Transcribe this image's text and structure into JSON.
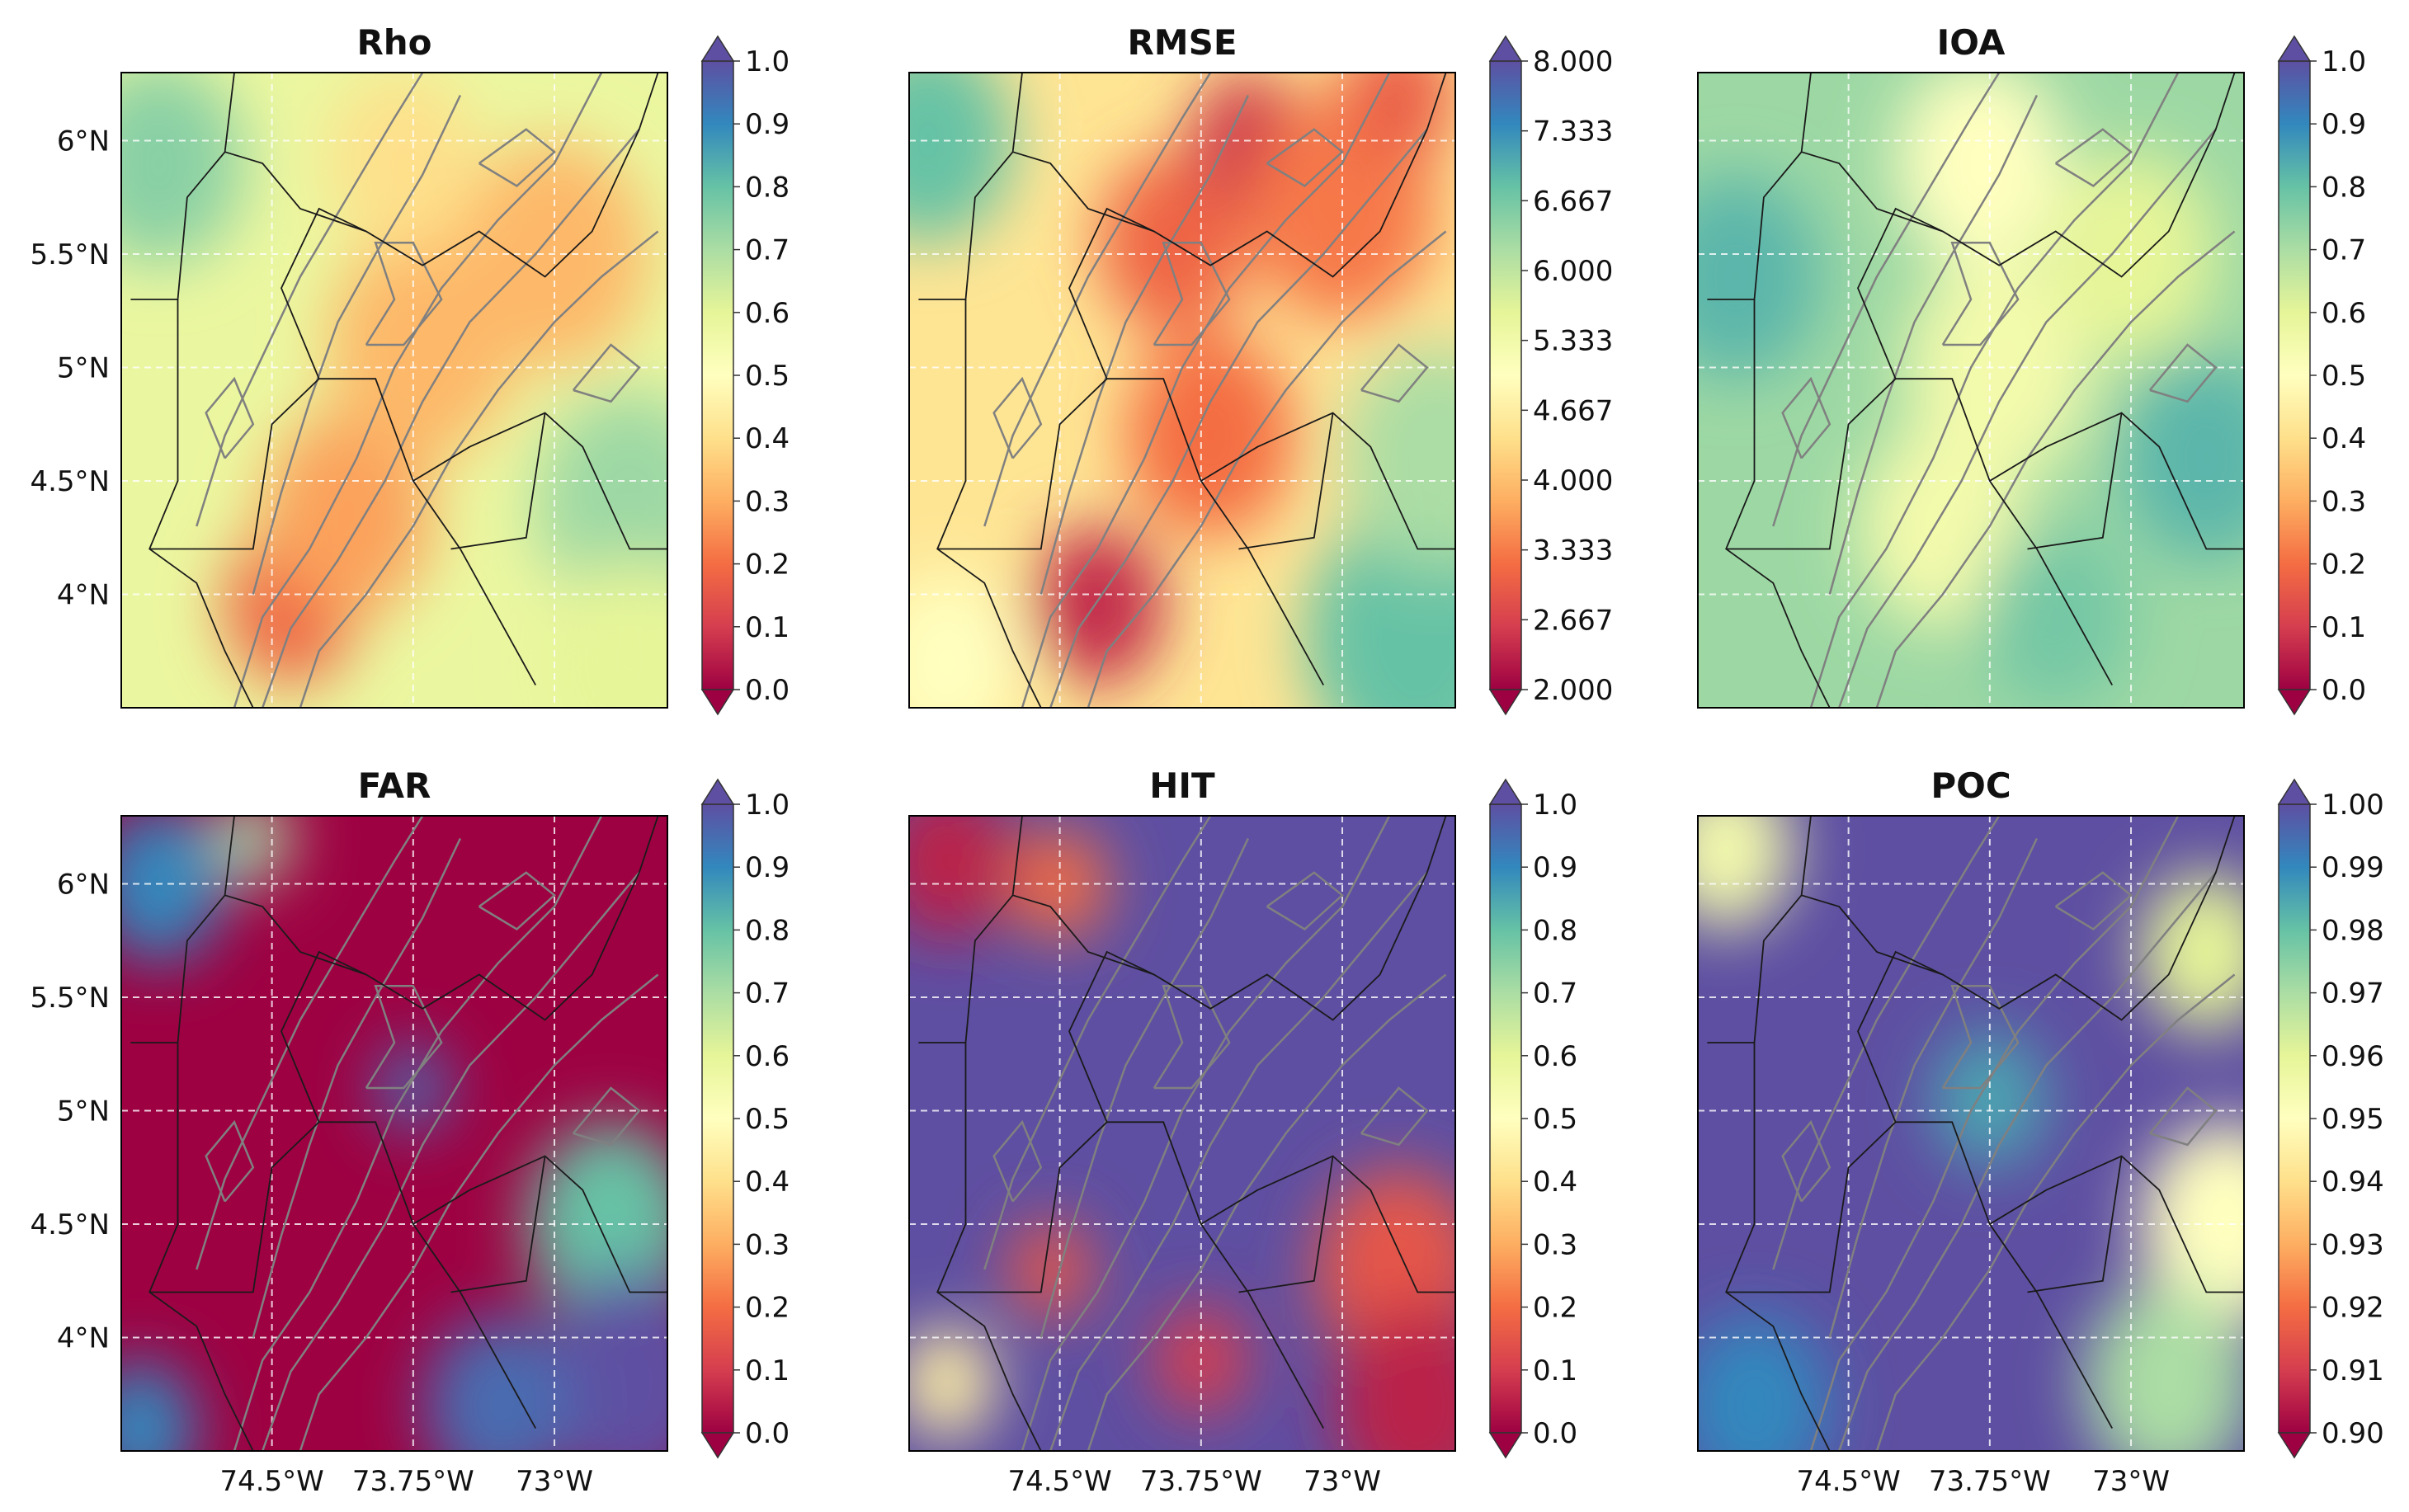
{
  "colormap": [
    "#9e0142",
    "#d53e4f",
    "#f46d43",
    "#fdae61",
    "#fee08b",
    "#ffffbf",
    "#e6f598",
    "#abdda4",
    "#66c2a5",
    "#3288bd",
    "#5e4fa2"
  ],
  "lon_ticks": [
    "74.5°W",
    "73.75°W",
    "73°W"
  ],
  "lat_ticks": [
    "6°N",
    "5.5°N",
    "5°N",
    "4.5°N",
    "4°N"
  ],
  "lon_range": [
    -75.3,
    -72.4
  ],
  "lat_range": [
    3.5,
    6.3
  ],
  "contour_color": "#808080",
  "border_color": "#1a1a1a",
  "chart_data": [
    {
      "type": "heatmap",
      "id": "rho",
      "title": "Rho",
      "cmin": 0.0,
      "cmax": 1.0,
      "ticks": [
        "1.0",
        "0.9",
        "0.8",
        "0.7",
        "0.6",
        "0.5",
        "0.4",
        "0.3",
        "0.2",
        "0.1",
        "0.0"
      ],
      "background": 0.58,
      "points": [
        {
          "lon": -74.4,
          "lat": 3.95,
          "v": 0.18,
          "r": 0.35
        },
        {
          "lon": -74.1,
          "lat": 4.35,
          "v": 0.28,
          "r": 0.45
        },
        {
          "lon": -73.7,
          "lat": 5.1,
          "v": 0.32,
          "r": 0.5
        },
        {
          "lon": -73.0,
          "lat": 5.5,
          "v": 0.32,
          "r": 0.5
        },
        {
          "lon": -73.8,
          "lat": 5.9,
          "v": 0.4,
          "r": 0.4
        },
        {
          "lon": -75.1,
          "lat": 5.9,
          "v": 0.75,
          "r": 0.45
        },
        {
          "lon": -72.6,
          "lat": 4.4,
          "v": 0.72,
          "r": 0.5
        },
        {
          "lon": -72.6,
          "lat": 3.7,
          "v": 0.6,
          "r": 0.45
        }
      ]
    },
    {
      "type": "heatmap",
      "id": "rmse",
      "title": "RMSE",
      "cmin": 2.0,
      "cmax": 8.0,
      "ticks": [
        "8.000",
        "7.333",
        "6.667",
        "6.000",
        "5.333",
        "4.667",
        "4.000",
        "3.333",
        "2.667",
        "2.000"
      ],
      "background": 4.5,
      "points": [
        {
          "lon": -74.3,
          "lat": 3.95,
          "v": 2.4,
          "r": 0.35
        },
        {
          "lon": -73.7,
          "lat": 4.7,
          "v": 3.2,
          "r": 0.45
        },
        {
          "lon": -73.9,
          "lat": 5.55,
          "v": 3.1,
          "r": 0.4
        },
        {
          "lon": -73.5,
          "lat": 6.0,
          "v": 2.5,
          "r": 0.3
        },
        {
          "lon": -73.0,
          "lat": 5.7,
          "v": 3.3,
          "r": 0.5
        },
        {
          "lon": -72.7,
          "lat": 6.2,
          "v": 3.0,
          "r": 0.3
        },
        {
          "lon": -75.2,
          "lat": 6.0,
          "v": 6.8,
          "r": 0.45
        },
        {
          "lon": -72.6,
          "lat": 3.8,
          "v": 6.8,
          "r": 0.6
        },
        {
          "lon": -72.5,
          "lat": 4.6,
          "v": 6.2,
          "r": 0.5
        },
        {
          "lon": -75.1,
          "lat": 3.7,
          "v": 5.0,
          "r": 0.4
        }
      ]
    },
    {
      "type": "heatmap",
      "id": "ioa",
      "title": "IOA",
      "cmin": 0.0,
      "cmax": 1.0,
      "ticks": [
        "1.0",
        "0.9",
        "0.8",
        "0.7",
        "0.6",
        "0.5",
        "0.4",
        "0.3",
        "0.2",
        "0.1",
        "0.0"
      ],
      "background": 0.72,
      "points": [
        {
          "lon": -73.8,
          "lat": 5.9,
          "v": 0.5,
          "r": 0.45
        },
        {
          "lon": -73.7,
          "lat": 5.0,
          "v": 0.55,
          "r": 0.5
        },
        {
          "lon": -74.0,
          "lat": 4.3,
          "v": 0.55,
          "r": 0.45
        },
        {
          "lon": -73.0,
          "lat": 5.5,
          "v": 0.6,
          "r": 0.45
        },
        {
          "lon": -75.1,
          "lat": 5.4,
          "v": 0.82,
          "r": 0.45
        },
        {
          "lon": -72.6,
          "lat": 4.6,
          "v": 0.82,
          "r": 0.45
        },
        {
          "lon": -73.4,
          "lat": 3.9,
          "v": 0.78,
          "r": 0.4
        }
      ]
    },
    {
      "type": "heatmap",
      "id": "far",
      "title": "FAR",
      "cmin": 0.0,
      "cmax": 1.0,
      "ticks": [
        "1.0",
        "0.9",
        "0.8",
        "0.7",
        "0.6",
        "0.5",
        "0.4",
        "0.3",
        "0.2",
        "0.1",
        "0.0"
      ],
      "background": 0.0,
      "points": [
        {
          "lon": -75.1,
          "lat": 6.0,
          "v": 0.9,
          "r": 0.35
        },
        {
          "lon": -74.6,
          "lat": 6.2,
          "v": 0.7,
          "r": 0.2
        },
        {
          "lon": -73.75,
          "lat": 5.1,
          "v": 0.95,
          "r": 0.2
        },
        {
          "lon": -72.7,
          "lat": 4.5,
          "v": 0.8,
          "r": 0.45
        },
        {
          "lon": -72.6,
          "lat": 3.8,
          "v": 1.0,
          "r": 0.5
        },
        {
          "lon": -73.3,
          "lat": 3.7,
          "v": 0.95,
          "r": 0.4
        },
        {
          "lon": -75.2,
          "lat": 3.6,
          "v": 0.9,
          "r": 0.3
        }
      ]
    },
    {
      "type": "heatmap",
      "id": "hit",
      "title": "HIT",
      "cmin": 0.0,
      "cmax": 1.0,
      "ticks": [
        "1.0",
        "0.9",
        "0.8",
        "0.7",
        "0.6",
        "0.5",
        "0.4",
        "0.3",
        "0.2",
        "0.1",
        "0.0"
      ],
      "background": 1.0,
      "points": [
        {
          "lon": -75.1,
          "lat": 6.1,
          "v": 0.05,
          "r": 0.35
        },
        {
          "lon": -74.5,
          "lat": 6.0,
          "v": 0.2,
          "r": 0.25
        },
        {
          "lon": -74.55,
          "lat": 4.3,
          "v": 0.15,
          "r": 0.22
        },
        {
          "lon": -73.75,
          "lat": 3.9,
          "v": 0.1,
          "r": 0.25
        },
        {
          "lon": -72.7,
          "lat": 4.3,
          "v": 0.15,
          "r": 0.45
        },
        {
          "lon": -72.6,
          "lat": 3.7,
          "v": 0.05,
          "r": 0.45
        },
        {
          "lon": -75.1,
          "lat": 3.8,
          "v": 0.45,
          "r": 0.25
        }
      ]
    },
    {
      "type": "heatmap",
      "id": "poc",
      "title": "POC",
      "cmin": 0.9,
      "cmax": 1.0,
      "ticks": [
        "1.00",
        "0.99",
        "0.98",
        "0.97",
        "0.96",
        "0.95",
        "0.94",
        "0.93",
        "0.92",
        "0.91",
        "0.90"
      ],
      "background": 1.0,
      "points": [
        {
          "lon": -75.15,
          "lat": 6.15,
          "v": 0.955,
          "r": 0.35
        },
        {
          "lon": -72.5,
          "lat": 4.5,
          "v": 0.95,
          "r": 0.45
        },
        {
          "lon": -72.6,
          "lat": 5.7,
          "v": 0.96,
          "r": 0.35
        },
        {
          "lon": -72.8,
          "lat": 3.8,
          "v": 0.97,
          "r": 0.45
        },
        {
          "lon": -73.75,
          "lat": 5.05,
          "v": 0.985,
          "r": 0.3
        },
        {
          "lon": -75.0,
          "lat": 3.7,
          "v": 0.99,
          "r": 0.4
        }
      ]
    }
  ]
}
